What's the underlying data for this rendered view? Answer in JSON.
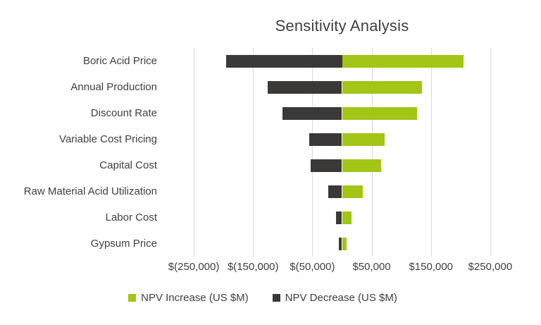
{
  "chart_data": {
    "type": "bar",
    "orientation": "horizontal",
    "title": "Sensitivity Analysis",
    "categories": [
      "Boric Acid Price",
      "Annual Production",
      "Discount Rate",
      "Variable Cost Pricing",
      "Capital Cost",
      "Raw Material Acid Utilization",
      "Labor Cost",
      "Gypsum Price"
    ],
    "series": [
      {
        "name": "NPV Increase (US $M)",
        "color": "#a2c516",
        "values": [
          205000,
          135000,
          127000,
          72000,
          66000,
          35000,
          16000,
          8000
        ]
      },
      {
        "name": "NPV Decrease (US $M)",
        "color": "#3b3838",
        "values": [
          -195000,
          -125000,
          -100000,
          -55000,
          -53000,
          -23000,
          -10000,
          -5000
        ]
      }
    ],
    "x_ticks": [
      "$(250,000)",
      "$(150,000)",
      "$(50,000)",
      "$50,000",
      "$150,000",
      "$250,000"
    ],
    "x_tick_values": [
      -250000,
      -150000,
      -50000,
      50000,
      150000,
      250000
    ],
    "xlim": [
      -300000,
      300000
    ],
    "grid": true,
    "gridline_color": "#d9d9d9",
    "legend_position": "bottom"
  }
}
